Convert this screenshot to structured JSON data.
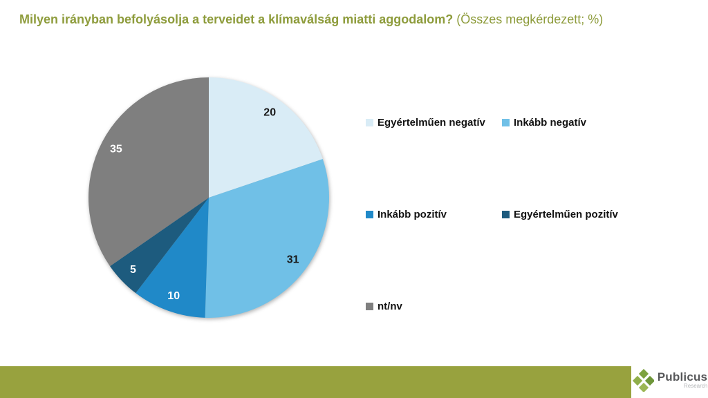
{
  "title": {
    "main": "Milyen irányban befolyásolja a terveidet a klímaválság miatti aggodalom?",
    "suffix": " (Összes megkérdezett; %)",
    "color": "#8e9c3c"
  },
  "chart_data": {
    "type": "pie",
    "start_angle_deg": 0,
    "direction": "clockwise",
    "data_labels": "values",
    "legend_position": "right",
    "slices": [
      {
        "label": "Egyértelműen negatív",
        "value": 20,
        "color": "#d9ecf6",
        "label_color": "#1a1a1a"
      },
      {
        "label": "Inkább negatív",
        "value": 31,
        "color": "#70c0e7",
        "label_color": "#1a1a1a"
      },
      {
        "label": "Inkább pozitív",
        "value": 10,
        "color": "#2089c8",
        "label_color": "#ffffff"
      },
      {
        "label": "Egyértelműen pozitív",
        "value": 5,
        "color": "#1d5b7e",
        "label_color": "#ffffff"
      },
      {
        "label": "nt/nv",
        "value": 35,
        "color": "#7f7f7f",
        "label_color": "#ffffff"
      }
    ]
  },
  "footer": {
    "bar_color": "#98a23e",
    "logo": {
      "name": "Publicus",
      "sub": "Research",
      "diamond_colors": [
        "#7da23f",
        "#8fae4a",
        "#6e9639",
        "#9cb654"
      ]
    }
  }
}
